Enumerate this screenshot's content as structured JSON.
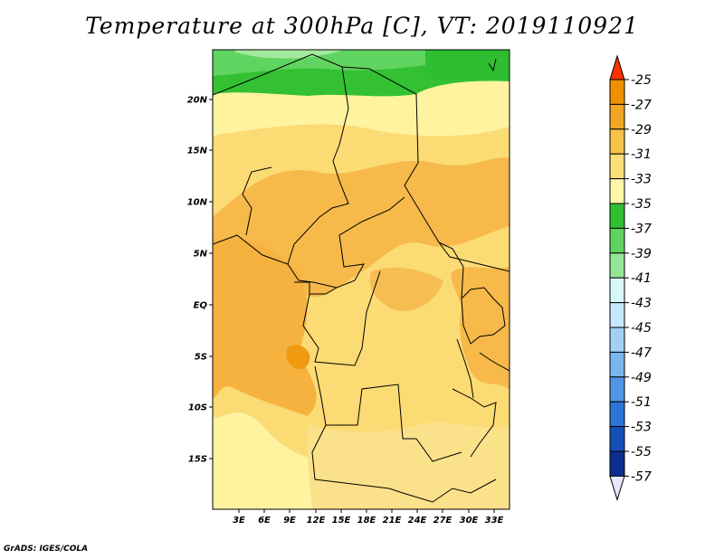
{
  "title": "Temperature at 300hPa [C], VT: 2019110921",
  "credit": "GrADS: IGES/COLA",
  "map": {
    "lon_ticks": [
      "3E",
      "6E",
      "9E",
      "12E",
      "15E",
      "18E",
      "21E",
      "24E",
      "27E",
      "30E",
      "33E"
    ],
    "lat_ticks": [
      "20N",
      "15N",
      "10N",
      "5N",
      "EQ",
      "5S",
      "10S",
      "15S"
    ]
  },
  "colorbar": {
    "labels": [
      "-25",
      "-27",
      "-29",
      "-31",
      "-33",
      "-35",
      "-37",
      "-39",
      "-41",
      "-43",
      "-45",
      "-47",
      "-49",
      "-51",
      "-53",
      "-55",
      "-57"
    ],
    "colors": [
      "#ff6a00",
      "#f09000",
      "#f2a623",
      "#f7c24a",
      "#fbdf78",
      "#fff6a8",
      "#30c030",
      "#5fd35f",
      "#95e695",
      "#d8f8f8",
      "#c5e8ff",
      "#a0d0f5",
      "#7ab6ed",
      "#5097e6",
      "#2d74d8",
      "#1450b8",
      "#0d2e8c",
      "#0a0a70"
    ],
    "tip_top": "#ff3300",
    "tip_bottom": "#e8e8ff"
  }
}
